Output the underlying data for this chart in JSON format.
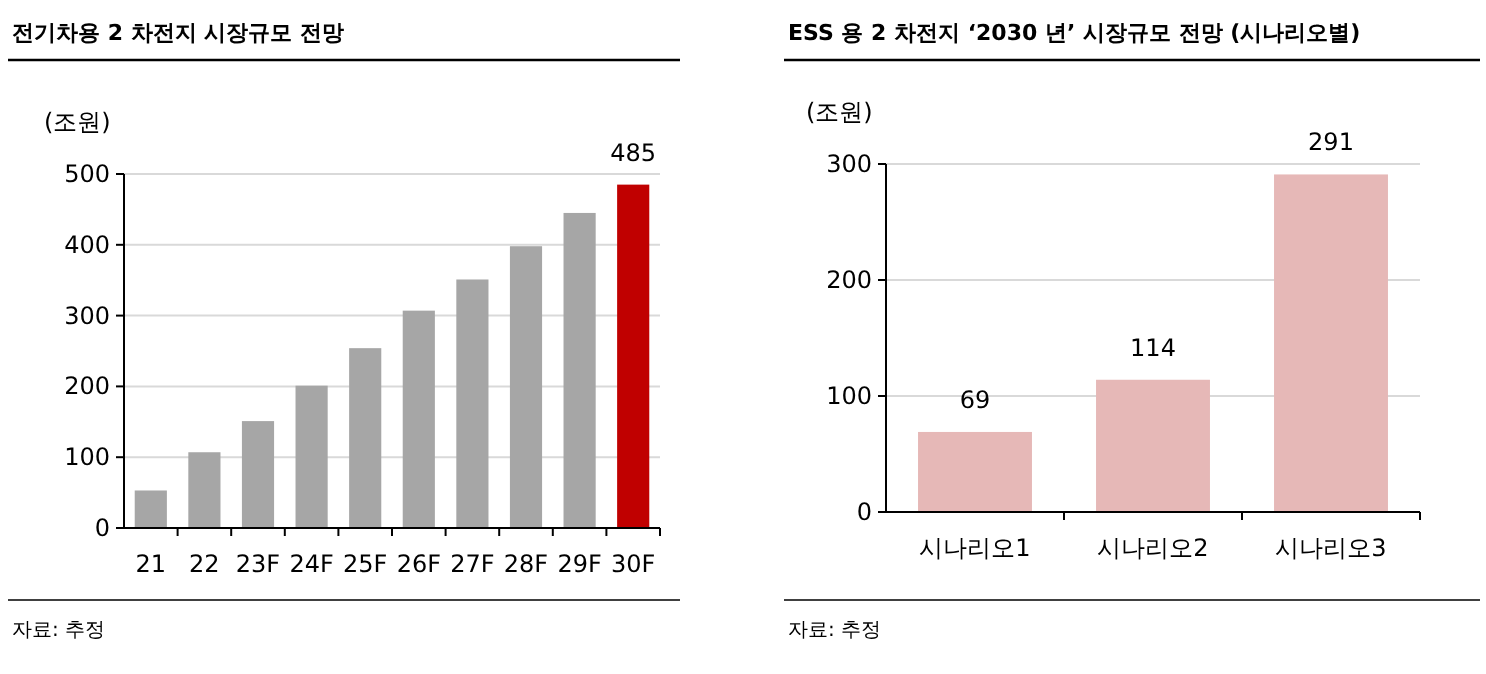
{
  "chart_data": [
    {
      "type": "bar",
      "title": "전기차용 2 차전지 시장규모 전망",
      "ylabel": "(조원)",
      "categories": [
        "21",
        "22",
        "23F",
        "24F",
        "25F",
        "26F",
        "27F",
        "28F",
        "29F",
        "30F"
      ],
      "values": [
        53,
        107,
        151,
        201,
        254,
        307,
        351,
        398,
        445,
        485
      ],
      "colors": [
        "#a6a6a6",
        "#a6a6a6",
        "#a6a6a6",
        "#a6a6a6",
        "#a6a6a6",
        "#a6a6a6",
        "#a6a6a6",
        "#a6a6a6",
        "#a6a6a6",
        "#c00000"
      ],
      "value_labels": [
        null,
        null,
        null,
        null,
        null,
        null,
        null,
        null,
        null,
        "485"
      ],
      "ylim": [
        0,
        500
      ],
      "yticks": [
        0,
        100,
        200,
        300,
        400,
        500
      ],
      "grid": "y",
      "annotations": [
        "자료: 추정"
      ]
    },
    {
      "type": "bar",
      "title": "ESS 용 2 차전지 ‘2030 년’ 시장규모 전망 (시나리오별)",
      "ylabel": "(조원)",
      "categories": [
        "시나리오1",
        "시나리오2",
        "시나리오3"
      ],
      "values": [
        69,
        114,
        291
      ],
      "color": "#e6b8b7",
      "data_labels": true,
      "ylim": [
        0,
        300
      ],
      "yticks": [
        0,
        100,
        200,
        300
      ],
      "grid": "y",
      "annotations": [
        "자료: 추정"
      ]
    }
  ]
}
